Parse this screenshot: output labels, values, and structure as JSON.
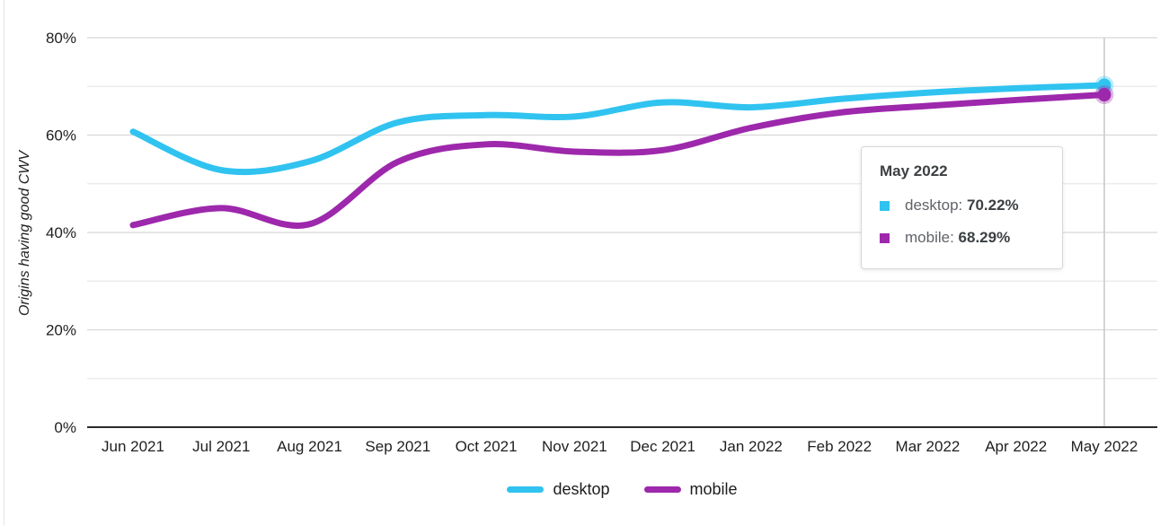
{
  "chart_data": {
    "type": "line",
    "title": "",
    "xlabel": "",
    "ylabel": "Origins having good CWV",
    "x": [
      "Jun 2021",
      "Jul 2021",
      "Aug 2021",
      "Sep 2021",
      "Oct 2021",
      "Nov 2021",
      "Dec 2021",
      "Jan 2022",
      "Feb 2022",
      "Mar 2022",
      "Apr 2022",
      "May 2022"
    ],
    "series": [
      {
        "name": "desktop",
        "color": "#30C3F0",
        "values": [
          60.7,
          52.8,
          54.6,
          62.6,
          64.1,
          63.8,
          66.7,
          65.7,
          67.4,
          68.7,
          69.6,
          70.22
        ]
      },
      {
        "name": "mobile",
        "color": "#9D28AC",
        "values": [
          41.5,
          45.0,
          41.7,
          54.5,
          58.1,
          56.6,
          56.9,
          61.5,
          64.6,
          66.0,
          67.2,
          68.29
        ]
      }
    ],
    "ylim": [
      0,
      80
    ],
    "y_major_ticks": [
      80,
      60,
      40,
      20,
      0
    ],
    "y_minor_ticks": [
      70,
      50,
      30,
      10
    ],
    "y_tick_suffix": "%",
    "grid": true,
    "legend_position": "bottom",
    "highlight_x": "May 2022",
    "highlight_values": {
      "desktop": 70.22,
      "mobile": 68.29
    }
  },
  "tooltip": {
    "title": "May 2022",
    "items": [
      {
        "label": "desktop:",
        "value": "70.22%",
        "color": "#30C3F0"
      },
      {
        "label": "mobile:",
        "value": "68.29%",
        "color": "#9D28AC"
      }
    ]
  },
  "legend": {
    "items": [
      {
        "label": "desktop",
        "color": "#30C3F0"
      },
      {
        "label": "mobile",
        "color": "#9D28AC"
      }
    ]
  },
  "colors": {
    "accent_desktop": "#30C3F0",
    "accent_mobile": "#9D28AC",
    "major_gridline": "#d8d8d8",
    "minor_gridline": "#e9e9e9",
    "baseline": "#2b2b2b",
    "crosshair": "#cfcfcf",
    "axis_text": "#1f1f1f"
  }
}
